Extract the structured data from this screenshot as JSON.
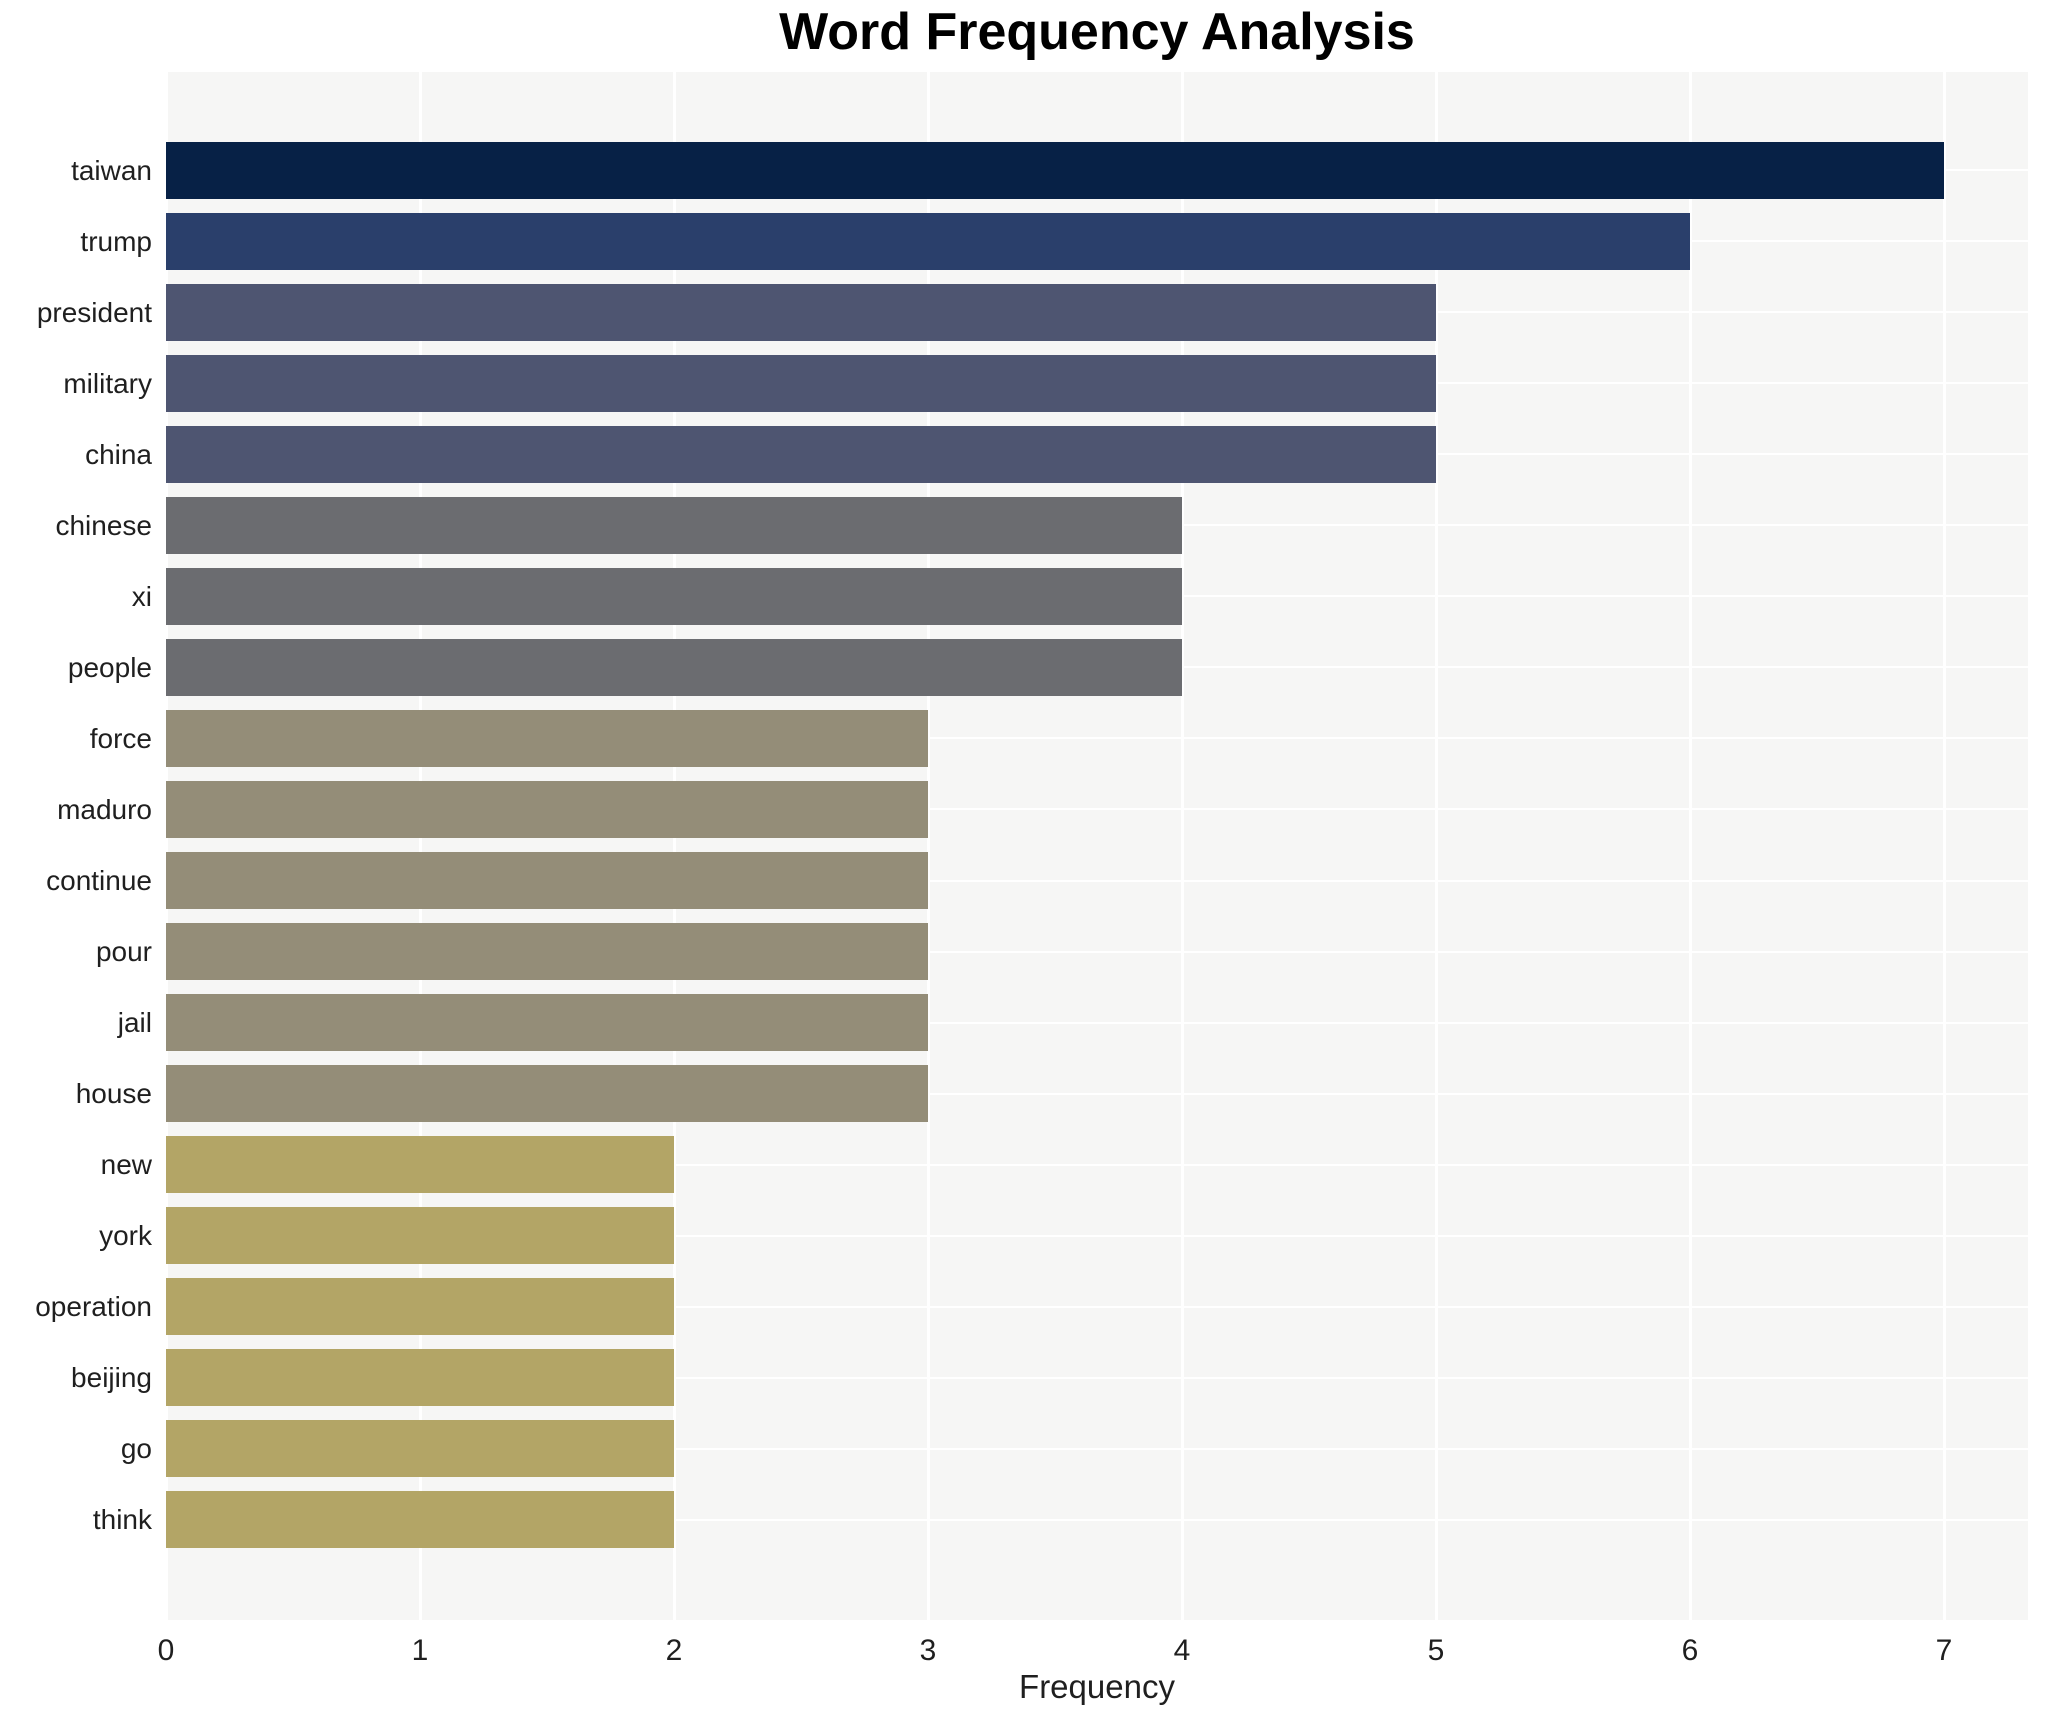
{
  "chart_data": {
    "type": "bar",
    "orientation": "horizontal",
    "title": "Word Frequency Analysis",
    "xlabel": "Frequency",
    "ylabel": "",
    "categories": [
      "taiwan",
      "trump",
      "president",
      "military",
      "china",
      "chinese",
      "xi",
      "people",
      "force",
      "maduro",
      "continue",
      "pour",
      "jail",
      "house",
      "new",
      "york",
      "operation",
      "beijing",
      "go",
      "think"
    ],
    "values": [
      7,
      6,
      5,
      5,
      5,
      4,
      4,
      4,
      3,
      3,
      3,
      3,
      3,
      3,
      2,
      2,
      2,
      2,
      2,
      2
    ],
    "xlim": [
      0,
      7.33
    ],
    "xticks": [
      "0",
      "1",
      "2",
      "3",
      "4",
      "5",
      "6",
      "7"
    ],
    "grid": true,
    "legend": false,
    "colors": {
      "page_background": "#ffffff",
      "plot_background": "#f6f6f5",
      "gridline": "#ffffff",
      "title_text": "#000000",
      "axis_text": "#1f1f1f",
      "bar_by_value": {
        "7": "#072146",
        "6": "#2a3f6b",
        "5": "#4e5571",
        "4": "#6b6c70",
        "3": "#948d78",
        "2": "#b3a566"
      }
    }
  }
}
